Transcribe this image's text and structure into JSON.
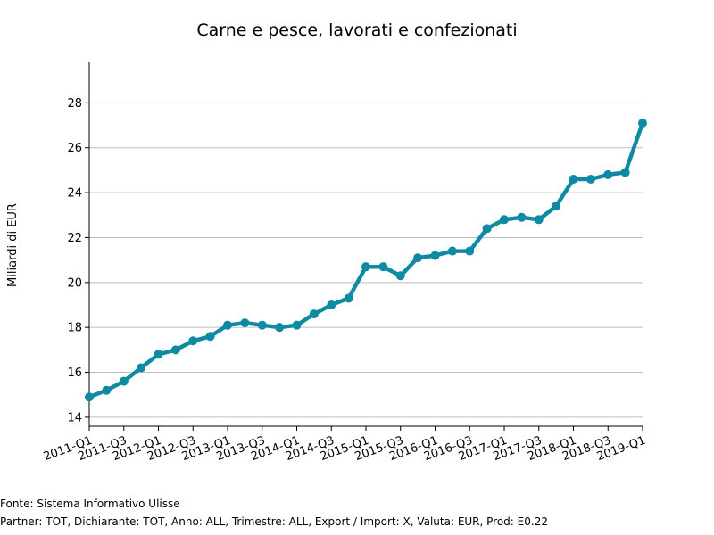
{
  "chart_data": {
    "type": "line",
    "title": "Carne e pesce, lavorati e confezionati",
    "xlabel": "",
    "ylabel": "Miliardi di EUR",
    "ylim": [
      13.6,
      29.8
    ],
    "grid": true,
    "y_ticks": [
      14,
      16,
      18,
      20,
      22,
      24,
      26,
      28
    ],
    "x_tick_labels": [
      "2011-Q1",
      "2011-Q3",
      "2012-Q1",
      "2012-Q3",
      "2013-Q1",
      "2013-Q3",
      "2014-Q1",
      "2014-Q3",
      "2015-Q1",
      "2015-Q3",
      "2016-Q1",
      "2016-Q3",
      "2017-Q1",
      "2017-Q3",
      "2018-Q1",
      "2018-Q3",
      "2019-Q1"
    ],
    "x": [
      "2011-Q1",
      "2011-Q2",
      "2011-Q3",
      "2011-Q4",
      "2012-Q1",
      "2012-Q2",
      "2012-Q3",
      "2012-Q4",
      "2013-Q1",
      "2013-Q2",
      "2013-Q3",
      "2013-Q4",
      "2014-Q1",
      "2014-Q2",
      "2014-Q3",
      "2014-Q4",
      "2015-Q1",
      "2015-Q2",
      "2015-Q3",
      "2015-Q4",
      "2016-Q1",
      "2016-Q2",
      "2016-Q3",
      "2016-Q4",
      "2017-Q1",
      "2017-Q2",
      "2017-Q3",
      "2017-Q4",
      "2018-Q1",
      "2018-Q2",
      "2018-Q3",
      "2018-Q4",
      "2019-Q1"
    ],
    "series": [
      {
        "color": "#0e8aa3",
        "values": [
          14.9,
          15.2,
          15.6,
          16.2,
          16.8,
          17.0,
          17.4,
          17.6,
          18.1,
          18.2,
          18.1,
          18.0,
          18.1,
          18.6,
          19.0,
          19.3,
          20.7,
          20.7,
          20.3,
          21.1,
          21.2,
          21.4,
          21.4,
          22.4,
          22.8,
          22.9,
          22.8,
          23.4,
          24.6,
          24.6,
          24.8,
          24.9,
          27.1
        ]
      }
    ]
  },
  "footer": {
    "source": "Fonte: Sistema Informativo Ulisse",
    "details": "Partner: TOT, Dichiarante: TOT, Anno: ALL, Trimestre: ALL, Export / Import: X, Valuta: EUR, Prod: E0.22"
  }
}
